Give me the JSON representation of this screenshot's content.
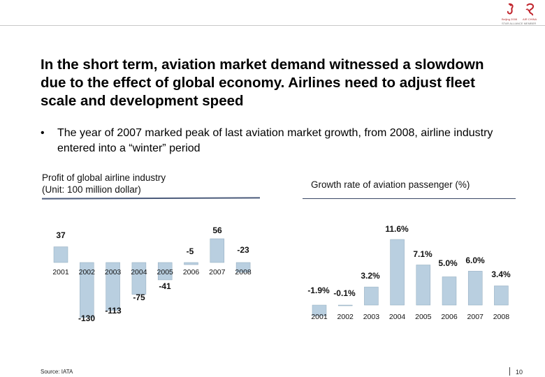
{
  "header": {
    "logo_olympic": "Beijing 2008",
    "logo_airline": "AIR CHINA",
    "logo_caption": "STAR ALLIANCE MEMBER"
  },
  "headline": "In the short term, aviation market demand witnessed a slowdown due to the effect of global economy. Airlines need to adjust fleet scale and development speed",
  "bullet": {
    "dot": "•",
    "text": "The year of 2007 marked peak of last aviation market growth, from 2008, airline industry entered into a “winter” period"
  },
  "footer": {
    "source": "Source: IATA",
    "page": "10"
  },
  "chart_data": [
    {
      "type": "bar",
      "title": "Profit of global airline industry\n(Unit: 100 million dollar)",
      "categories": [
        "2001",
        "2002",
        "2003",
        "2004",
        "2005",
        "2006",
        "2007",
        "2008"
      ],
      "values": [
        37,
        -130,
        -113,
        -75,
        -41,
        -5,
        56,
        -23
      ],
      "value_labels": [
        "37",
        "-130",
        "-113",
        "-75",
        "-41",
        "-5",
        "56",
        "-23"
      ],
      "color": "#b9cfe0",
      "ylim": [
        -130,
        56
      ]
    },
    {
      "type": "bar",
      "title": "Growth rate of aviation passenger (%)",
      "categories": [
        "2001",
        "2002",
        "2003",
        "2004",
        "2005",
        "2006",
        "2007",
        "2008"
      ],
      "values": [
        -1.9,
        -0.1,
        3.2,
        11.6,
        7.1,
        5.0,
        6.0,
        3.4
      ],
      "value_labels": [
        "-1.9%",
        "-0.1%",
        "3.2%",
        "11.6%",
        "7.1%",
        "5.0%",
        "6.0%",
        "3.4%"
      ],
      "color": "#b9cfe0",
      "ylim": [
        -1.9,
        11.6
      ]
    }
  ]
}
